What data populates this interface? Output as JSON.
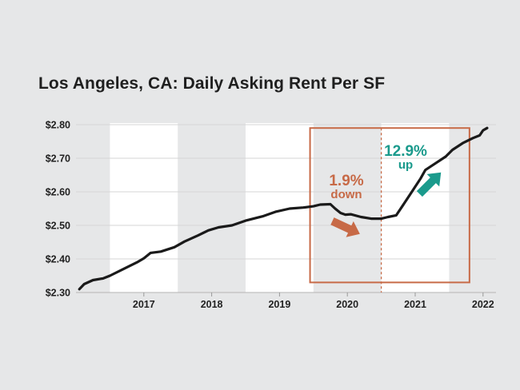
{
  "chart_data": {
    "type": "line",
    "title": "Los Angeles, CA: Daily Asking Rent Per SF",
    "xlabel": "",
    "ylabel": "",
    "y_tick_labels": [
      "$2.80",
      "$2.70",
      "$2.60",
      "$2.50",
      "$2.40",
      "$2.30"
    ],
    "y_tick_values": [
      2.8,
      2.7,
      2.6,
      2.5,
      2.4,
      2.3
    ],
    "ylim": [
      2.3,
      2.8
    ],
    "x_tick_labels": [
      "2017",
      "2018",
      "2019",
      "2020",
      "2021",
      "2022"
    ],
    "xlim": [
      2016.0,
      2022.25
    ],
    "grid": true,
    "x_tick_position": "year-end",
    "alternating_year_bands": [
      "2016.5-2017.5",
      "2018.5-2019.5",
      "2020.5-2021.5"
    ],
    "series": [
      {
        "color": "#1a1a1a",
        "x": [
          2016.05,
          2016.12,
          2016.25,
          2016.4,
          2016.5,
          2016.7,
          2016.9,
          2017.0,
          2017.1,
          2017.25,
          2017.45,
          2017.6,
          2017.8,
          2017.95,
          2018.1,
          2018.3,
          2018.5,
          2018.75,
          2018.95,
          2019.15,
          2019.35,
          2019.5,
          2019.6,
          2019.75,
          2019.82,
          2019.9,
          2019.97,
          2020.05,
          2020.2,
          2020.35,
          2020.5,
          2020.6,
          2020.72,
          2020.82,
          2020.95,
          2021.08,
          2021.15,
          2021.3,
          2021.45,
          2021.55,
          2021.7,
          2021.85,
          2021.95,
          2022.0,
          2022.06
        ],
        "y": [
          2.31,
          2.325,
          2.337,
          2.342,
          2.35,
          2.37,
          2.39,
          2.402,
          2.418,
          2.422,
          2.435,
          2.452,
          2.47,
          2.485,
          2.494,
          2.5,
          2.514,
          2.527,
          2.541,
          2.55,
          2.553,
          2.557,
          2.562,
          2.563,
          2.55,
          2.537,
          2.532,
          2.533,
          2.525,
          2.52,
          2.52,
          2.525,
          2.53,
          2.56,
          2.6,
          2.64,
          2.665,
          2.685,
          2.705,
          2.725,
          2.745,
          2.76,
          2.768,
          2.783,
          2.79
        ]
      }
    ],
    "annotations": [
      {
        "value": "1.9%",
        "label": "down",
        "color": "#c76a47",
        "direction": "down"
      },
      {
        "value": "12.9%",
        "label": "up",
        "color": "#1a9a8c",
        "direction": "up"
      }
    ],
    "highlight_box_color": "#c76a47",
    "divider_date": 2020.5
  }
}
